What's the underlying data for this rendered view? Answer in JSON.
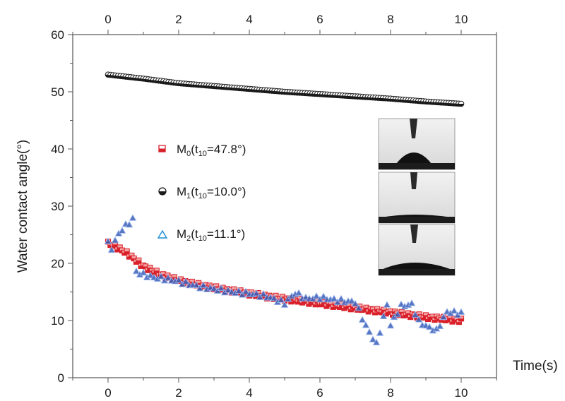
{
  "chart_data": {
    "type": "scatter",
    "title": "",
    "xlabel": "Time(s)",
    "ylabel": "Water contact angle(°)",
    "xlim": [
      -1,
      11
    ],
    "ylim": [
      0,
      60
    ],
    "x_ticks": [
      "0",
      "2",
      "4",
      "6",
      "8",
      "10"
    ],
    "y_ticks": [
      "0",
      "10",
      "20",
      "30",
      "40",
      "50",
      "60"
    ],
    "top_axis_ticks": [
      "0",
      "2",
      "4",
      "6",
      "8",
      "10"
    ],
    "grid": false,
    "legend_position": "center-left",
    "legend": [
      {
        "base": "M",
        "sub": "0",
        "paren_open": "(t",
        "paren_sub": "10",
        "value": "=47.8°)",
        "marker": "square-half",
        "color": "#d9202a"
      },
      {
        "base": "M",
        "sub": "1",
        "paren_open": "(t",
        "paren_sub": "10",
        "value": "=10.0°)",
        "marker": "circle-half",
        "color": "#1a1a1a"
      },
      {
        "base": "M",
        "sub": "2",
        "paren_open": "(t",
        "paren_sub": "10",
        "value": "=11.1°)",
        "marker": "triangle",
        "color": "#1b8fd6"
      }
    ],
    "series": [
      {
        "marker": "circle-half",
        "color": "#1a1a1a",
        "x": [
          0,
          1,
          2,
          3,
          4,
          5,
          6,
          7,
          8,
          9,
          10
        ],
        "y": [
          53.0,
          52.3,
          51.5,
          51.0,
          50.5,
          50.0,
          49.6,
          49.2,
          48.8,
          48.3,
          47.9
        ]
      },
      {
        "marker": "square-half",
        "color": "#d9202a",
        "x": [
          0,
          0.2,
          0.4,
          0.6,
          0.8,
          1.0,
          1.5,
          2,
          2.5,
          3,
          3.5,
          4,
          4.5,
          5,
          5.5,
          6,
          6.5,
          7,
          7.5,
          8,
          8.5,
          9,
          9.5,
          10
        ],
        "y": [
          23.5,
          23.0,
          22.3,
          21.5,
          20.5,
          19.5,
          18.0,
          17.0,
          16.3,
          15.7,
          15.2,
          14.7,
          14.2,
          13.8,
          13.4,
          13.0,
          12.6,
          12.2,
          11.8,
          11.4,
          11.0,
          10.6,
          10.3,
          10.0
        ]
      },
      {
        "marker": "triangle",
        "color": "#1b8fd6",
        "x": [
          0,
          0.1,
          0.2,
          0.3,
          0.4,
          0.5,
          0.6,
          0.7,
          0.8,
          1.0,
          1.3,
          1.6,
          2.0,
          2.5,
          3.0,
          3.5,
          4.0,
          4.5,
          5.0,
          5.3,
          5.6,
          6.0,
          6.5,
          7.0,
          7.3,
          7.6,
          7.9,
          8.0,
          8.3,
          8.6,
          8.8,
          9.0,
          9.3,
          9.6,
          10.0
        ],
        "y": [
          23.5,
          22.5,
          24.0,
          25.0,
          26.0,
          26.5,
          27.0,
          27.8,
          18.5,
          18.0,
          17.5,
          17.3,
          16.8,
          16.0,
          15.5,
          15.0,
          14.7,
          14.2,
          13.0,
          14.8,
          13.8,
          14.0,
          13.5,
          13.2,
          9.0,
          5.8,
          12.8,
          9.2,
          12.5,
          12.8,
          9.8,
          9.0,
          8.2,
          11.5,
          11.2
        ]
      }
    ]
  }
}
